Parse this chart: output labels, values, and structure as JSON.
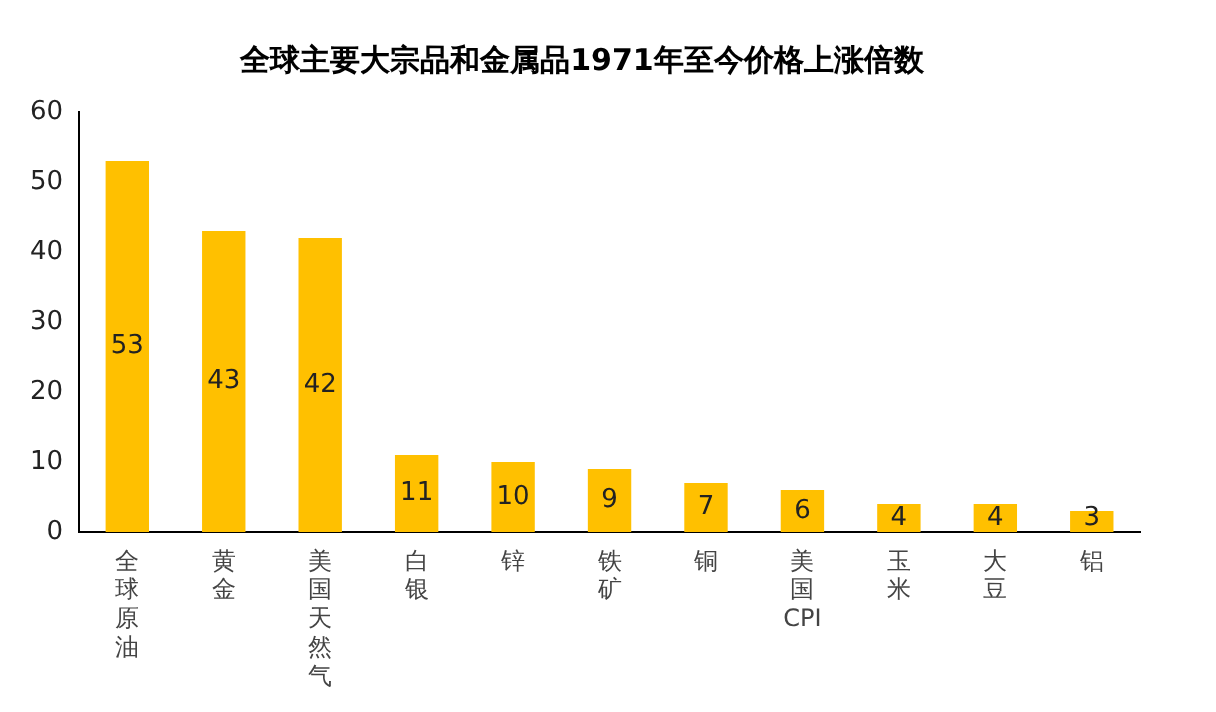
{
  "chart_data": {
    "type": "bar",
    "title": "全球主要大宗品和金属品1971年至今价格上涨倍数",
    "categories": [
      "全球原油",
      "黄金",
      "美国天然气",
      "白银",
      "锌",
      "铁矿",
      "铜",
      "美国CPI",
      "玉米",
      "大豆",
      "铝"
    ],
    "values": [
      53,
      43,
      42,
      11,
      10,
      9,
      7,
      6,
      4,
      4,
      3
    ],
    "color": "#ffc000",
    "ylim": [
      0,
      60
    ],
    "yticks": [
      0,
      10,
      20,
      30,
      40,
      50,
      60
    ],
    "grid": false,
    "legend": false,
    "data_labels": true
  }
}
